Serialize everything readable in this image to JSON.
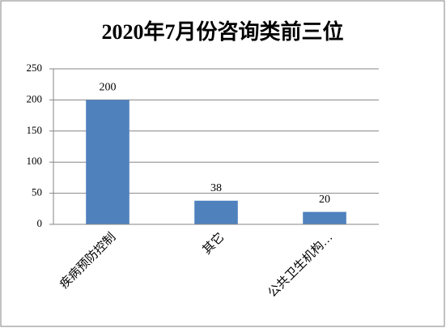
{
  "chart_data": {
    "type": "bar",
    "title": "2020年7月份咨询类前三位",
    "categories": [
      "疾病预防控制",
      "其它",
      "公共卫生机构…"
    ],
    "values": [
      200,
      38,
      20
    ],
    "color": "#4f81bd",
    "ylim": [
      0,
      250
    ],
    "yticks": [
      0,
      50,
      100,
      150,
      200,
      250
    ],
    "grid": true,
    "data_labels": true
  }
}
